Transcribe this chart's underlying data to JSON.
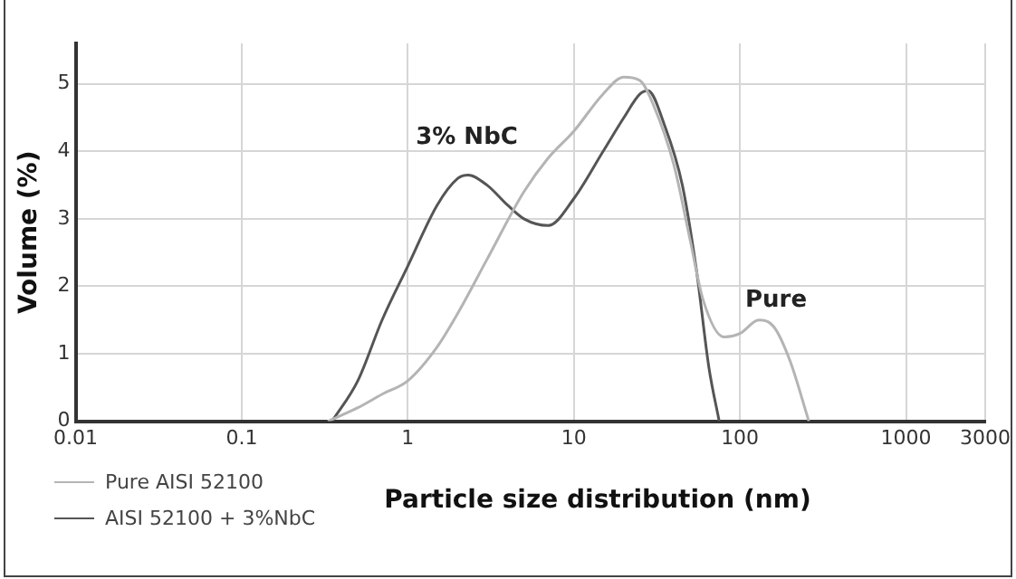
{
  "chart_data": {
    "type": "line",
    "xlabel": "Particle size distribution (nm)",
    "ylabel": "Volume (%)",
    "log": "x",
    "xlim": [
      0.01,
      3000
    ],
    "xticks": [
      0.01,
      0.1,
      1,
      10,
      100,
      1000,
      3000
    ],
    "ylim": [
      0,
      5.6
    ],
    "yticks": [
      0,
      1,
      2,
      3,
      4,
      5
    ],
    "grid": true,
    "legend": "bottom left",
    "marker": "none",
    "line_style": "solid",
    "series": [
      {
        "name": "Pure AISI 52100",
        "color": "#b4b4b4",
        "x": [
          0.33,
          0.5,
          0.7,
          1,
          1.5,
          2,
          3,
          5,
          7,
          10,
          15,
          20,
          25,
          30,
          40,
          50,
          60,
          80,
          100,
          130,
          160,
          200,
          260
        ],
        "values": [
          0,
          0.2,
          0.4,
          0.6,
          1.1,
          1.6,
          2.4,
          3.4,
          3.9,
          4.3,
          4.85,
          5.1,
          5.05,
          4.7,
          3.8,
          2.7,
          1.8,
          1.25,
          1.3,
          1.5,
          1.4,
          0.9,
          0
        ]
      },
      {
        "name": "AISI 52100 + 3%NbC",
        "color": "#555555",
        "x": [
          0.35,
          0.5,
          0.7,
          1,
          1.5,
          2,
          2.3,
          3,
          4,
          5,
          7,
          10,
          15,
          20,
          25,
          28,
          35,
          45,
          55,
          65,
          75
        ],
        "values": [
          0,
          0.6,
          1.5,
          2.3,
          3.2,
          3.6,
          3.65,
          3.5,
          3.2,
          3.0,
          2.9,
          3.3,
          4.0,
          4.5,
          4.85,
          4.9,
          4.4,
          3.5,
          2.2,
          0.8,
          0
        ]
      }
    ],
    "annotations": [
      "3% NbC",
      "Pure"
    ]
  }
}
